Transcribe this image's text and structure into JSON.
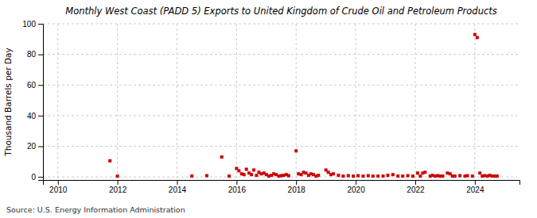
{
  "chart_data": {
    "type": "scatter",
    "title": "Monthly West Coast (PADD 5) Exports to United Kingdom of Crude Oil and Petroleum Products",
    "ylabel": "Thousand Barrels per Day",
    "annotations": [
      "Source: U.S. Energy Information Administration"
    ],
    "color": "#cc0000",
    "marker": "square",
    "grid": true,
    "xlim": [
      2009.5,
      2025.5
    ],
    "ylim": [
      -2,
      100
    ],
    "xticks": [
      2010,
      2012,
      2014,
      2016,
      2018,
      2020,
      2022,
      2024
    ],
    "yticks": [
      0,
      20,
      40,
      60,
      80,
      100
    ],
    "x": [
      2011.75,
      2012.0,
      2014.5,
      2015.0,
      2015.5,
      2015.75,
      2016.0,
      2016.08,
      2016.17,
      2016.25,
      2016.33,
      2016.42,
      2016.5,
      2016.58,
      2016.67,
      2016.75,
      2016.83,
      2016.92,
      2017.0,
      2017.08,
      2017.17,
      2017.25,
      2017.33,
      2017.42,
      2017.5,
      2017.58,
      2017.67,
      2017.75,
      2018.0,
      2018.08,
      2018.17,
      2018.25,
      2018.33,
      2018.42,
      2018.5,
      2018.58,
      2018.67,
      2018.75,
      2019.0,
      2019.08,
      2019.17,
      2019.25,
      2019.42,
      2019.58,
      2019.75,
      2019.92,
      2020.08,
      2020.25,
      2020.42,
      2020.58,
      2020.75,
      2020.92,
      2021.08,
      2021.25,
      2021.42,
      2021.58,
      2021.75,
      2021.92,
      2022.08,
      2022.17,
      2022.25,
      2022.33,
      2022.5,
      2022.58,
      2022.67,
      2022.75,
      2022.83,
      2022.92,
      2023.08,
      2023.17,
      2023.25,
      2023.33,
      2023.5,
      2023.67,
      2023.75,
      2023.92,
      2024.0,
      2024.08,
      2024.17,
      2024.25,
      2024.33,
      2024.42,
      2024.5,
      2024.58,
      2024.67,
      2024.75
    ],
    "values": [
      10.5,
      0.5,
      0.5,
      0.8,
      13.0,
      0.5,
      5.5,
      4.0,
      2.0,
      1.5,
      5.0,
      2.5,
      1.5,
      4.5,
      1.0,
      3.0,
      2.0,
      2.5,
      1.5,
      0.5,
      1.0,
      2.0,
      1.5,
      0.5,
      0.8,
      1.0,
      1.5,
      0.8,
      17.0,
      2.0,
      1.5,
      3.0,
      2.5,
      1.0,
      2.0,
      1.5,
      0.5,
      1.0,
      4.5,
      3.0,
      1.5,
      2.0,
      1.0,
      0.5,
      0.8,
      0.5,
      0.8,
      0.5,
      0.8,
      0.5,
      0.5,
      0.5,
      1.0,
      1.5,
      0.5,
      0.5,
      0.8,
      0.5,
      2.5,
      0.5,
      2.5,
      3.0,
      0.5,
      1.0,
      0.5,
      0.8,
      0.5,
      0.5,
      2.5,
      2.0,
      0.5,
      0.5,
      0.8,
      0.5,
      0.8,
      0.5,
      93.0,
      91.0,
      2.5,
      0.5,
      0.8,
      0.5,
      1.0,
      0.5,
      0.5,
      0.5
    ]
  }
}
